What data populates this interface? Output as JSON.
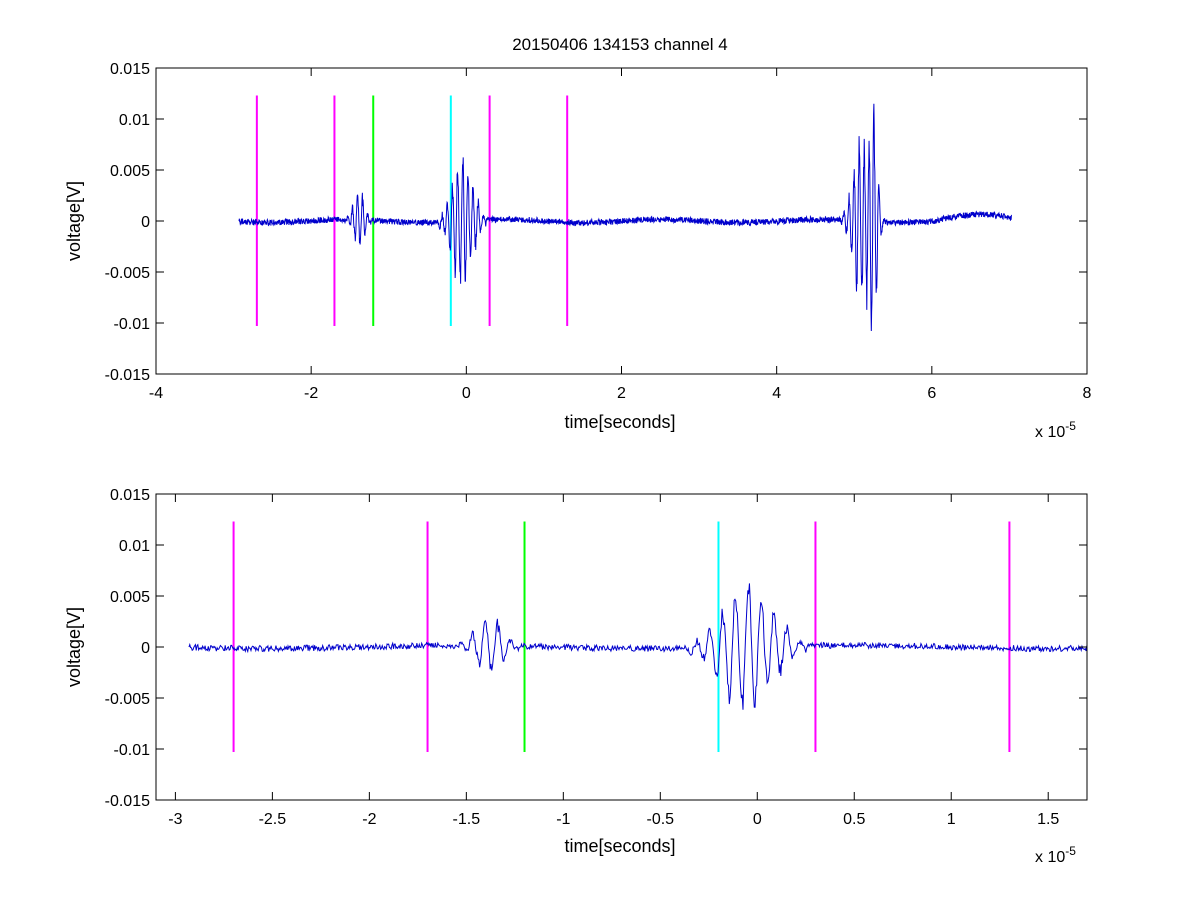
{
  "figure": {
    "background": "#ffffff"
  },
  "chart_data": [
    {
      "type": "line",
      "title": "20150406 134153 channel 4",
      "xlabel": "time[seconds]",
      "ylabel": "voltage[V]",
      "x_exponent_label": "x 10",
      "x_exponent": "-5",
      "x_scale": 1e-05,
      "xlim": [
        -4,
        8
      ],
      "ylim": [
        -0.015,
        0.015
      ],
      "xticks": [
        -4,
        -2,
        0,
        2,
        4,
        6,
        8
      ],
      "xtick_labels": [
        "-4",
        "-2",
        "0",
        "2",
        "4",
        "6",
        "8"
      ],
      "yticks": [
        -0.015,
        -0.01,
        -0.005,
        0,
        0.005,
        0.01,
        0.015
      ],
      "ytick_labels": [
        "-0.015",
        "-0.01",
        "-0.005",
        "0",
        "0.005",
        "0.01",
        "0.015"
      ],
      "grid": false,
      "trace": {
        "color": "#0000cc",
        "x_range": [
          -2.93,
          7.03
        ],
        "noise_amplitude": 0.0003,
        "bursts": [
          {
            "center": -1.38,
            "amplitude": 0.0032,
            "width": 0.14
          },
          {
            "center": -0.05,
            "amplitude": 0.0075,
            "width": 0.26
          },
          {
            "center": 5.1,
            "amplitude": 0.0092,
            "width": 0.22
          },
          {
            "center": 5.25,
            "amplitude": 0.011,
            "width": 0.1
          }
        ]
      },
      "markers": [
        {
          "x": -2.7,
          "y0": -0.0103,
          "y1": 0.0123,
          "color": "#ff00ff"
        },
        {
          "x": -1.7,
          "y0": -0.0103,
          "y1": 0.0123,
          "color": "#ff00ff"
        },
        {
          "x": -1.2,
          "y0": -0.0103,
          "y1": 0.0123,
          "color": "#00ff00"
        },
        {
          "x": -0.2,
          "y0": -0.0103,
          "y1": 0.0123,
          "color": "#00ffff"
        },
        {
          "x": 0.3,
          "y0": -0.0103,
          "y1": 0.0123,
          "color": "#ff00ff"
        },
        {
          "x": 1.3,
          "y0": -0.0103,
          "y1": 0.0123,
          "color": "#ff00ff"
        }
      ]
    },
    {
      "type": "line",
      "title": "",
      "xlabel": "time[seconds]",
      "ylabel": "voltage[V]",
      "x_exponent_label": "x 10",
      "x_exponent": "-5",
      "x_scale": 1e-05,
      "xlim": [
        -3.1,
        1.7
      ],
      "ylim": [
        -0.015,
        0.015
      ],
      "xticks": [
        -3,
        -2.5,
        -2,
        -1.5,
        -1,
        -0.5,
        0,
        0.5,
        1,
        1.5
      ],
      "xtick_labels": [
        "-3",
        "-2.5",
        "-2",
        "-1.5",
        "-1",
        "-0.5",
        "0",
        "0.5",
        "1",
        "1.5"
      ],
      "yticks": [
        -0.015,
        -0.01,
        -0.005,
        0,
        0.005,
        0.01,
        0.015
      ],
      "ytick_labels": [
        "-0.015",
        "-0.01",
        "-0.005",
        "0",
        "0.005",
        "0.01",
        "0.015"
      ],
      "grid": false,
      "trace": {
        "color": "#0000cc",
        "x_range": [
          -2.93,
          1.7
        ],
        "noise_amplitude": 0.0003,
        "bursts": [
          {
            "center": -1.38,
            "amplitude": 0.0032,
            "width": 0.14
          },
          {
            "center": -0.05,
            "amplitude": 0.0075,
            "width": 0.26
          }
        ]
      },
      "markers": [
        {
          "x": -2.7,
          "y0": -0.0103,
          "y1": 0.0123,
          "color": "#ff00ff"
        },
        {
          "x": -1.7,
          "y0": -0.0103,
          "y1": 0.0123,
          "color": "#ff00ff"
        },
        {
          "x": -1.2,
          "y0": -0.0103,
          "y1": 0.0123,
          "color": "#00ff00"
        },
        {
          "x": -0.2,
          "y0": -0.0103,
          "y1": 0.0123,
          "color": "#00ffff"
        },
        {
          "x": 0.3,
          "y0": -0.0103,
          "y1": 0.0123,
          "color": "#ff00ff"
        },
        {
          "x": 1.3,
          "y0": -0.0103,
          "y1": 0.0123,
          "color": "#ff00ff"
        }
      ]
    }
  ]
}
